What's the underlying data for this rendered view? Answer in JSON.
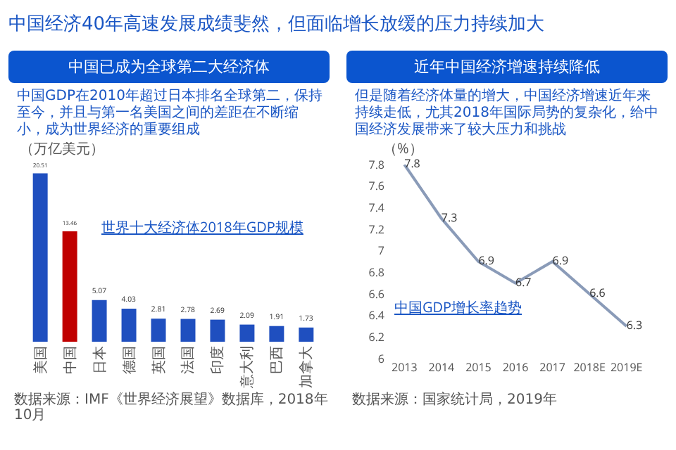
{
  "chart_data": [
    {
      "type": "other",
      "title": "中国经济40年高速发展成绩斐然，但面临增长放缓的压力持续加大"
    },
    {
      "type": "bar",
      "title": "中国已成为全球第二大经济体",
      "subtitle": "中国GDP在2010年超过日本排名全球第二，保持至今，并且与第一名美国之间的差距在不断缩小，成为世界经济的重要组成",
      "ylabel": "（万亿美元）",
      "categories": [
        "美国",
        "中国",
        "日本",
        "德国",
        "英国",
        "法国",
        "印度",
        "意大利",
        "巴西",
        "加拿大"
      ],
      "values": [
        20.51,
        13.46,
        5.07,
        4.03,
        2.81,
        2.78,
        2.69,
        2.09,
        1.91,
        1.73
      ],
      "colors": [
        "#1f4fbf",
        "#c00000",
        "#1f4fbf",
        "#1f4fbf",
        "#1f4fbf",
        "#1f4fbf",
        "#1f4fbf",
        "#1f4fbf",
        "#1f4fbf",
        "#1f4fbf"
      ],
      "data_labels": true,
      "tick_labels": "x",
      "annotations": [
        "世界十大经济体2018年GDP规模",
        "数据来源：IMF《世界经济展望》数据库，2018年10月"
      ]
    },
    {
      "type": "line",
      "title": "近年中国经济增速持续降低",
      "subtitle": "但是随着经济体量的增大，中国经济增速近年来持续走低，尤其2018年国际局势的复杂化，给中国经济发展带来了较大压力和挑战",
      "ylabel": "（%）",
      "categories": [
        "2013",
        "2014",
        "2015",
        "2016",
        "2017",
        "2018E",
        "2019E"
      ],
      "values": [
        7.8,
        7.3,
        6.9,
        6.7,
        6.9,
        6.6,
        6.3
      ],
      "color": "#8a9bb8",
      "ylim": [
        6,
        7.8
      ],
      "yticks": [
        6,
        6.2,
        6.4,
        6.6,
        6.8,
        7,
        7.2,
        7.4,
        7.6,
        7.8
      ],
      "data_labels": true,
      "annotations": [
        "中国GDP增长率趋势",
        "数据来源：国家统计局，2019年"
      ]
    }
  ]
}
